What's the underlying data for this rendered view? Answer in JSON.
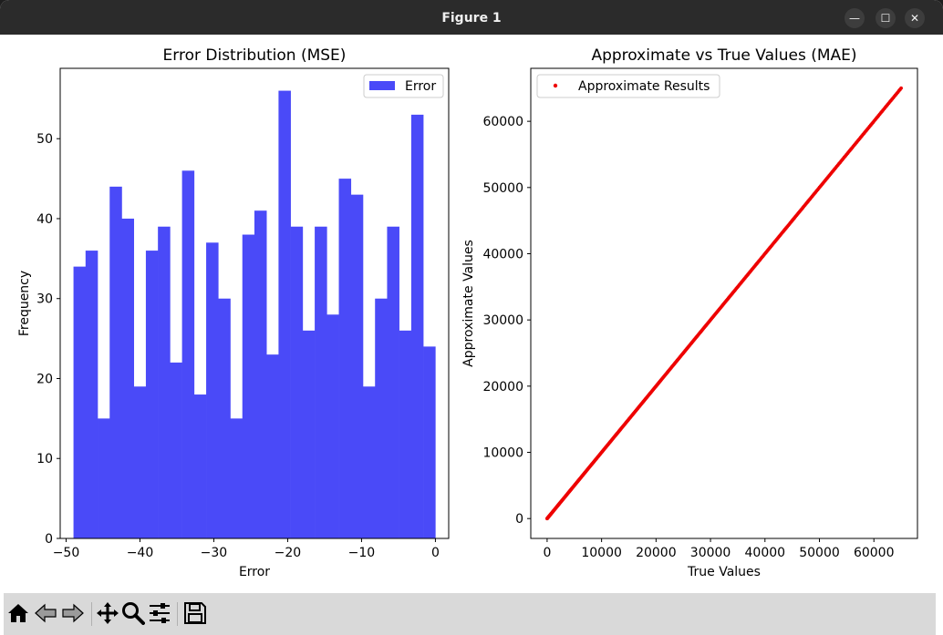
{
  "window": {
    "title": "Figure 1",
    "minimize_glyph": "—",
    "maximize_glyph": "☐",
    "close_glyph": "✕"
  },
  "toolbar": {
    "icons": [
      "home-icon",
      "back-icon",
      "forward-icon",
      "pan-icon",
      "zoom-icon",
      "configure-subplots-icon",
      "save-icon"
    ]
  },
  "colors": {
    "hist": "#4a4af8",
    "scatter": "#ee0000",
    "titlebar": "#2b2b2b",
    "toolbar": "#d9d9d9"
  },
  "chart_data": [
    {
      "type": "bar",
      "title": "Error Distribution (MSE)",
      "xlabel": "Error",
      "ylabel": "Frequency",
      "legend": [
        "Error"
      ],
      "legend_position": "upper right",
      "xlim": [
        -50.8,
        1.8
      ],
      "ylim": [
        0,
        58.8
      ],
      "xticks": [
        -50,
        -40,
        -30,
        -20,
        -10,
        0
      ],
      "xtick_labels": [
        "−50",
        "−40",
        "−30",
        "−20",
        "−10",
        "0"
      ],
      "yticks": [
        0,
        10,
        20,
        30,
        40,
        50
      ],
      "yticks_labels": [
        "0",
        "10",
        "20",
        "30",
        "40",
        "50"
      ],
      "bin_start": -49,
      "bin_width": 1.633,
      "values": [
        34,
        36,
        15,
        44,
        40,
        19,
        36,
        39,
        22,
        46,
        18,
        37,
        30,
        15,
        38,
        41,
        23,
        56,
        39,
        26,
        39,
        28,
        45,
        43,
        19,
        30,
        39,
        26,
        53,
        24
      ]
    },
    {
      "type": "scatter",
      "title": "Approximate vs True Values (MAE)",
      "xlabel": "True Values",
      "ylabel": "Approximate Values",
      "legend": [
        "Approximate Results"
      ],
      "legend_position": "upper left",
      "xlim": [
        -3000,
        68000
      ],
      "ylim": [
        -3000,
        68000
      ],
      "xticks": [
        0,
        10000,
        20000,
        30000,
        40000,
        50000,
        60000
      ],
      "xtick_labels": [
        "0",
        "10000",
        "20000",
        "30000",
        "40000",
        "50000",
        "60000"
      ],
      "yticks": [
        0,
        10000,
        20000,
        30000,
        40000,
        50000,
        60000
      ],
      "ytick_labels": [
        "0",
        "10000",
        "20000",
        "30000",
        "40000",
        "50000",
        "60000"
      ],
      "max_value": 65000,
      "relation": "y = x"
    }
  ]
}
